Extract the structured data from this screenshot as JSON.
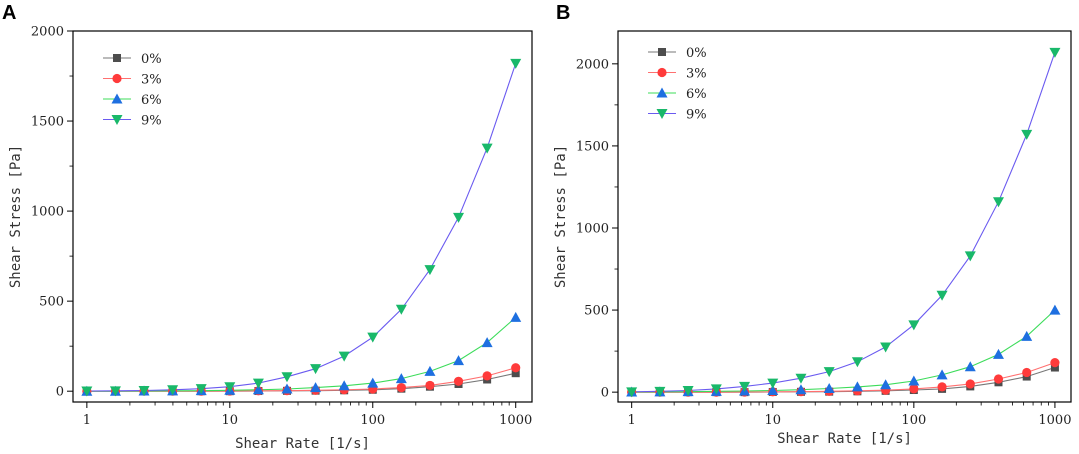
{
  "chart_data": [
    {
      "panel": "A",
      "type": "line",
      "xscale": "log",
      "xlabel": "Shear Rate [1/s]",
      "ylabel": "Shear Stress [Pa]",
      "xlim": [
        0.8,
        1300
      ],
      "ylim": [
        -60,
        2000
      ],
      "xticks": [
        1,
        10,
        100,
        1000
      ],
      "xtick_labels": [
        "1",
        "10",
        "100",
        "1000"
      ],
      "yticks": [
        0,
        500,
        1000,
        1500,
        2000
      ],
      "ytick_labels": [
        "0",
        "500",
        "1000",
        "1500",
        "2000"
      ],
      "legend_position": "top-left",
      "x": [
        1,
        1.585,
        2.512,
        3.981,
        6.31,
        10,
        15.85,
        25.12,
        39.81,
        63.1,
        100,
        158.5,
        251.2,
        398.1,
        631,
        1000
      ],
      "series": [
        {
          "name": "0%",
          "marker": "square",
          "color": "#4d4d4d",
          "line_color": "#777777",
          "values": [
            0,
            0,
            0,
            0,
            0,
            0,
            1,
            2,
            3,
            5,
            8,
            14,
            25,
            40,
            65,
            100
          ]
        },
        {
          "name": "3%",
          "marker": "circle",
          "color": "#ff3b3b",
          "line_color": "#ff7070",
          "values": [
            0,
            0,
            0,
            0,
            0,
            1,
            2,
            3,
            5,
            8,
            12,
            20,
            32,
            55,
            85,
            130
          ]
        },
        {
          "name": "6%",
          "marker": "triangle-up",
          "color": "#1e6fe0",
          "line_color": "#3cdc5a",
          "values": [
            0,
            0,
            1,
            2,
            3,
            5,
            8,
            12,
            20,
            30,
            45,
            70,
            110,
            170,
            270,
            410
          ]
        },
        {
          "name": "9%",
          "marker": "triangle-down",
          "color": "#19b86a",
          "line_color": "#6a5af0",
          "values": [
            1,
            2,
            4,
            8,
            14,
            25,
            45,
            80,
            125,
            195,
            300,
            455,
            675,
            965,
            1350,
            1820
          ]
        }
      ]
    },
    {
      "panel": "B",
      "type": "line",
      "xscale": "log",
      "xlabel": "Shear Rate [1/s]",
      "ylabel": "Shear Stress [Pa]",
      "xlim": [
        0.8,
        1300
      ],
      "ylim": [
        -60,
        2200
      ],
      "xticks": [
        1,
        10,
        100,
        1000
      ],
      "xtick_labels": [
        "1",
        "10",
        "100",
        "1000"
      ],
      "yticks": [
        0,
        500,
        1000,
        1500,
        2000
      ],
      "ytick_labels": [
        "0",
        "500",
        "1000",
        "1500",
        "2000"
      ],
      "legend_position": "top-left",
      "x": [
        1,
        1.585,
        2.512,
        3.981,
        6.31,
        10,
        15.85,
        25.12,
        39.81,
        63.1,
        100,
        158.5,
        251.2,
        398.1,
        631,
        1000
      ],
      "series": [
        {
          "name": "0%",
          "marker": "square",
          "color": "#4d4d4d",
          "line_color": "#777777",
          "values": [
            0,
            0,
            0,
            0,
            0,
            1,
            2,
            3,
            5,
            8,
            13,
            20,
            35,
            60,
            95,
            150
          ]
        },
        {
          "name": "3%",
          "marker": "circle",
          "color": "#ff3b3b",
          "line_color": "#ff7070",
          "values": [
            0,
            0,
            0,
            0,
            1,
            2,
            3,
            5,
            8,
            12,
            20,
            32,
            50,
            80,
            120,
            180
          ]
        },
        {
          "name": "6%",
          "marker": "triangle-up",
          "color": "#1e6fe0",
          "line_color": "#3cdc5a",
          "values": [
            1,
            2,
            3,
            5,
            7,
            10,
            15,
            22,
            32,
            45,
            68,
            105,
            155,
            230,
            340,
            500
          ]
        },
        {
          "name": "9%",
          "marker": "triangle-down",
          "color": "#19b86a",
          "line_color": "#6a5af0",
          "values": [
            2,
            5,
            10,
            20,
            35,
            55,
            85,
            125,
            185,
            275,
            410,
            590,
            830,
            1160,
            1570,
            2070
          ]
        }
      ]
    }
  ]
}
